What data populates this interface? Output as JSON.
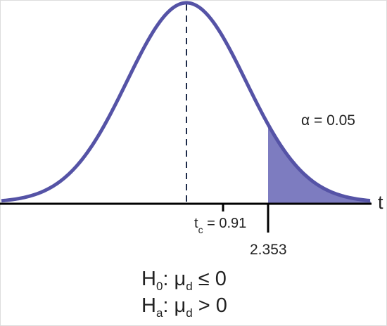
{
  "diagram": {
    "alpha_label": "α = 0.05",
    "axis_label": "t",
    "test_statistic": {
      "symbol": "t",
      "subscript": "c",
      "rest": " = 0.91"
    },
    "critical_value": "2.353",
    "hypotheses": [
      {
        "symbol": "H",
        "subscript": "0",
        "mid": ": μ",
        "subscript2": "d",
        "rest": " ≤ 0"
      },
      {
        "symbol": "H",
        "subscript": "a",
        "mid": ": μ",
        "subscript2": "d",
        "rest": " > 0"
      }
    ]
  }
}
